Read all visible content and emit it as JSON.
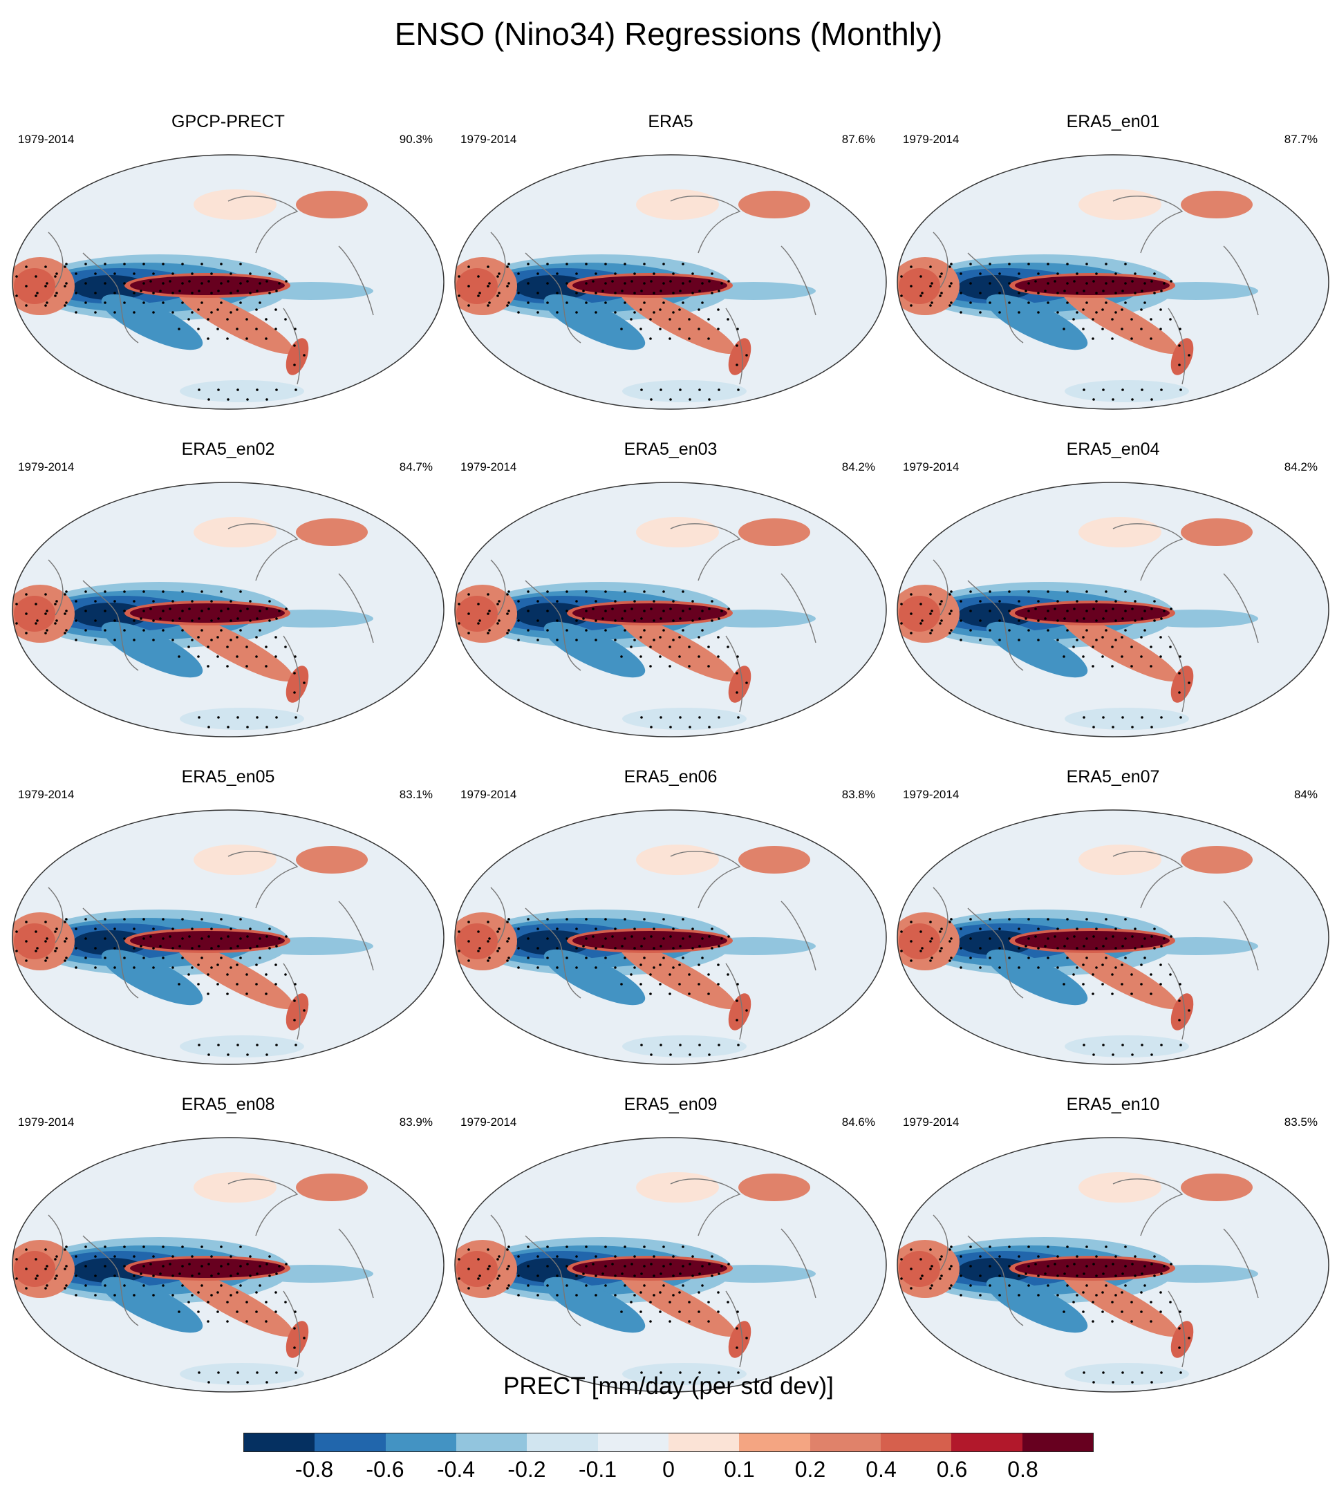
{
  "figure": {
    "title": "ENSO (Nino34) Regressions (Monthly)"
  },
  "chart_data": {
    "type": "heatmap",
    "title": "ENSO (Nino34) Regressions (Monthly)",
    "variable": "PRECT [mm/day (per std dev)]",
    "projection": "Robinson (global)",
    "layout": "4 rows x 3 columns",
    "stippling": true,
    "panels": [
      {
        "name": "GPCP-PRECT",
        "period": "1979-2014",
        "pattern_correlation": "90.3%"
      },
      {
        "name": "ERA5",
        "period": "1979-2014",
        "pattern_correlation": "87.6%"
      },
      {
        "name": "ERA5_en01",
        "period": "1979-2014",
        "pattern_correlation": "87.7%"
      },
      {
        "name": "ERA5_en02",
        "period": "1979-2014",
        "pattern_correlation": "84.7%"
      },
      {
        "name": "ERA5_en03",
        "period": "1979-2014",
        "pattern_correlation": "84.2%"
      },
      {
        "name": "ERA5_en04",
        "period": "1979-2014",
        "pattern_correlation": "84.2%"
      },
      {
        "name": "ERA5_en05",
        "period": "1979-2014",
        "pattern_correlation": "83.1%"
      },
      {
        "name": "ERA5_en06",
        "period": "1979-2014",
        "pattern_correlation": "83.8%"
      },
      {
        "name": "ERA5_en07",
        "period": "1979-2014",
        "pattern_correlation": "84%"
      },
      {
        "name": "ERA5_en08",
        "period": "1979-2014",
        "pattern_correlation": "83.9%"
      },
      {
        "name": "ERA5_en09",
        "period": "1979-2014",
        "pattern_correlation": "84.6%"
      },
      {
        "name": "ERA5_en10",
        "period": "1979-2014",
        "pattern_correlation": "83.5%"
      }
    ],
    "colorbar": {
      "label": "PRECT [mm/day (per std dev)]",
      "tick_labels": [
        "-0.8",
        "-0.6",
        "-0.4",
        "-0.2",
        "-0.1",
        "0",
        "0.1",
        "0.2",
        "0.4",
        "0.6",
        "0.8"
      ],
      "colors": [
        "#053061",
        "#2166ac",
        "#4393c3",
        "#92c5de",
        "#d1e5f0",
        "#e8eff5",
        "#fbe3d6",
        "#f4a582",
        "#e0826a",
        "#d6604d",
        "#b2182b",
        "#67001f"
      ]
    }
  }
}
